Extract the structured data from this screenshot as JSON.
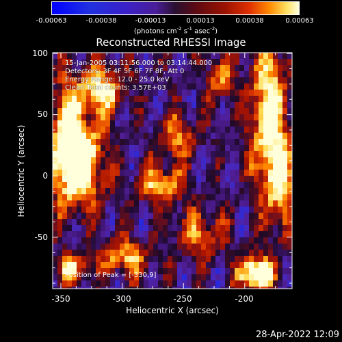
{
  "colorbar": {
    "ticks": [
      "-0.00063",
      "-0.00038",
      "-0.00013",
      "0.00013",
      "0.00038",
      "0.00063"
    ],
    "units_text": "(photons cm",
    "units_sup1": "-2",
    "units_mid1": " s",
    "units_sup2": "-1",
    "units_mid2": " asec",
    "units_sup3": "-2",
    "units_end": ")"
  },
  "plot": {
    "title": "Reconstructed RHESSI Image",
    "annotations": {
      "time": "15-Jan-2005 03:11:56.000 to 03:14:44.000",
      "detectors": "Detectors: 3F 4F 5F 6F 7F 8F, Att 0",
      "energy": "Energy Range: 12.0 - 25.0 keV",
      "clean": "Clean     Total counts: 3.57E+03"
    },
    "peak": "Position of Peak = [-330,9]",
    "x_label": "Heliocentric X (arcsec)",
    "y_label": "Heliocentric Y (arcsec)",
    "x_ticks": [
      "-350",
      "-300",
      "-250",
      "-200"
    ],
    "y_ticks": [
      "100",
      "50",
      "0",
      "-50"
    ]
  },
  "footer": {
    "timestamp": "28-Apr-2022 12:09"
  }
}
